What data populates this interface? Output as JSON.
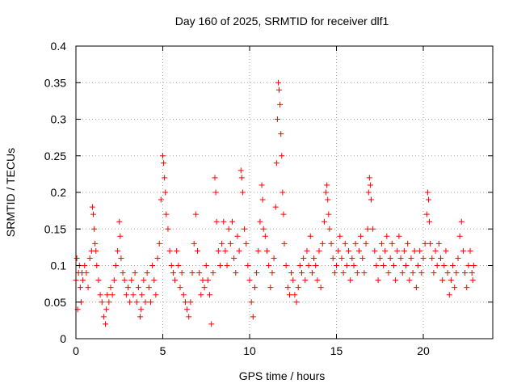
{
  "chart_data": {
    "type": "scatter",
    "title": "Day 160 of 2025, SRMTID for receiver dlf1",
    "xlabel": "GPS time / hours",
    "ylabel": "SRMTID / TECUs",
    "xlim": [
      0,
      24
    ],
    "ylim": [
      0,
      0.4
    ],
    "x_ticks": [
      0,
      5,
      10,
      15,
      20
    ],
    "x_tick_labels": [
      "0",
      "5",
      "10",
      "15",
      "20"
    ],
    "y_ticks": [
      0,
      0.05,
      0.1,
      0.15,
      0.2,
      0.25,
      0.3,
      0.35,
      0.4
    ],
    "y_tick_labels": [
      "0",
      "0.05",
      "0.1",
      "0.15",
      "0.2",
      "0.25",
      "0.3",
      "0.35",
      "0.4"
    ],
    "grid": true,
    "marker": "plus",
    "series": [
      {
        "name": "SRMTID",
        "color": "#ff0000",
        "points": [
          [
            0.0,
            0.08
          ],
          [
            0.05,
            0.11
          ],
          [
            0.1,
            0.04
          ],
          [
            0.15,
            0.09
          ],
          [
            0.2,
            0.1
          ],
          [
            0.25,
            0.07
          ],
          [
            0.3,
            0.05
          ],
          [
            0.35,
            0.09
          ],
          [
            0.4,
            0.08
          ],
          [
            0.5,
            0.1
          ],
          [
            0.6,
            0.09
          ],
          [
            0.7,
            0.07
          ],
          [
            0.8,
            0.11
          ],
          [
            0.9,
            0.12
          ],
          [
            0.95,
            0.18
          ],
          [
            1.0,
            0.17
          ],
          [
            1.05,
            0.15
          ],
          [
            1.1,
            0.13
          ],
          [
            1.15,
            0.12
          ],
          [
            1.2,
            0.1
          ],
          [
            1.3,
            0.08
          ],
          [
            1.4,
            0.06
          ],
          [
            1.5,
            0.05
          ],
          [
            1.6,
            0.03
          ],
          [
            1.7,
            0.02
          ],
          [
            1.75,
            0.04
          ],
          [
            1.8,
            0.06
          ],
          [
            1.9,
            0.05
          ],
          [
            2.0,
            0.07
          ],
          [
            2.1,
            0.06
          ],
          [
            2.2,
            0.08
          ],
          [
            2.3,
            0.1
          ],
          [
            2.4,
            0.12
          ],
          [
            2.5,
            0.16
          ],
          [
            2.55,
            0.14
          ],
          [
            2.6,
            0.11
          ],
          [
            2.7,
            0.09
          ],
          [
            2.8,
            0.08
          ],
          [
            2.9,
            0.06
          ],
          [
            3.0,
            0.07
          ],
          [
            3.1,
            0.05
          ],
          [
            3.2,
            0.08
          ],
          [
            3.3,
            0.06
          ],
          [
            3.4,
            0.09
          ],
          [
            3.5,
            0.05
          ],
          [
            3.6,
            0.07
          ],
          [
            3.7,
            0.03
          ],
          [
            3.75,
            0.04
          ],
          [
            3.8,
            0.06
          ],
          [
            3.9,
            0.08
          ],
          [
            4.0,
            0.05
          ],
          [
            4.1,
            0.09
          ],
          [
            4.2,
            0.07
          ],
          [
            4.3,
            0.05
          ],
          [
            4.4,
            0.1
          ],
          [
            4.5,
            0.08
          ],
          [
            4.6,
            0.06
          ],
          [
            4.7,
            0.11
          ],
          [
            4.8,
            0.13
          ],
          [
            4.9,
            0.19
          ],
          [
            5.0,
            0.25
          ],
          [
            5.05,
            0.24
          ],
          [
            5.1,
            0.22
          ],
          [
            5.15,
            0.2
          ],
          [
            5.2,
            0.17
          ],
          [
            5.3,
            0.15
          ],
          [
            5.4,
            0.12
          ],
          [
            5.5,
            0.1
          ],
          [
            5.6,
            0.09
          ],
          [
            5.7,
            0.08
          ],
          [
            5.8,
            0.12
          ],
          [
            5.9,
            0.1
          ],
          [
            6.0,
            0.07
          ],
          [
            6.1,
            0.09
          ],
          [
            6.2,
            0.06
          ],
          [
            6.3,
            0.05
          ],
          [
            6.4,
            0.04
          ],
          [
            6.5,
            0.03
          ],
          [
            6.6,
            0.05
          ],
          [
            6.7,
            0.09
          ],
          [
            6.8,
            0.13
          ],
          [
            6.9,
            0.17
          ],
          [
            7.0,
            0.12
          ],
          [
            7.1,
            0.09
          ],
          [
            7.2,
            0.06
          ],
          [
            7.3,
            0.08
          ],
          [
            7.4,
            0.07
          ],
          [
            7.5,
            0.1
          ],
          [
            7.6,
            0.08
          ],
          [
            7.7,
            0.06
          ],
          [
            7.8,
            0.02
          ],
          [
            7.9,
            0.09
          ],
          [
            8.0,
            0.22
          ],
          [
            8.05,
            0.2
          ],
          [
            8.1,
            0.16
          ],
          [
            8.2,
            0.12
          ],
          [
            8.3,
            0.1
          ],
          [
            8.4,
            0.13
          ],
          [
            8.5,
            0.16
          ],
          [
            8.6,
            0.12
          ],
          [
            8.7,
            0.1
          ],
          [
            8.8,
            0.15
          ],
          [
            8.9,
            0.13
          ],
          [
            9.0,
            0.16
          ],
          [
            9.1,
            0.11
          ],
          [
            9.2,
            0.09
          ],
          [
            9.3,
            0.14
          ],
          [
            9.4,
            0.12
          ],
          [
            9.5,
            0.23
          ],
          [
            9.55,
            0.22
          ],
          [
            9.6,
            0.2
          ],
          [
            9.7,
            0.15
          ],
          [
            9.8,
            0.13
          ],
          [
            9.9,
            0.1
          ],
          [
            10.0,
            0.08
          ],
          [
            10.1,
            0.05
          ],
          [
            10.2,
            0.03
          ],
          [
            10.3,
            0.07
          ],
          [
            10.4,
            0.09
          ],
          [
            10.5,
            0.12
          ],
          [
            10.6,
            0.16
          ],
          [
            10.7,
            0.21
          ],
          [
            10.75,
            0.19
          ],
          [
            10.8,
            0.15
          ],
          [
            10.9,
            0.14
          ],
          [
            11.0,
            0.12
          ],
          [
            11.1,
            0.1
          ],
          [
            11.2,
            0.07
          ],
          [
            11.3,
            0.09
          ],
          [
            11.4,
            0.11
          ],
          [
            11.5,
            0.18
          ],
          [
            11.55,
            0.24
          ],
          [
            11.6,
            0.3
          ],
          [
            11.65,
            0.35
          ],
          [
            11.7,
            0.34
          ],
          [
            11.75,
            0.32
          ],
          [
            11.8,
            0.28
          ],
          [
            11.85,
            0.25
          ],
          [
            11.9,
            0.2
          ],
          [
            11.95,
            0.17
          ],
          [
            12.0,
            0.13
          ],
          [
            12.1,
            0.1
          ],
          [
            12.2,
            0.07
          ],
          [
            12.3,
            0.06
          ],
          [
            12.4,
            0.09
          ],
          [
            12.5,
            0.08
          ],
          [
            12.6,
            0.06
          ],
          [
            12.7,
            0.05
          ],
          [
            12.8,
            0.07
          ],
          [
            12.9,
            0.1
          ],
          [
            13.0,
            0.09
          ],
          [
            13.1,
            0.11
          ],
          [
            13.2,
            0.08
          ],
          [
            13.3,
            0.12
          ],
          [
            13.4,
            0.1
          ],
          [
            13.5,
            0.14
          ],
          [
            13.6,
            0.09
          ],
          [
            13.7,
            0.11
          ],
          [
            13.8,
            0.1
          ],
          [
            13.9,
            0.08
          ],
          [
            14.0,
            0.12
          ],
          [
            14.1,
            0.07
          ],
          [
            14.2,
            0.13
          ],
          [
            14.3,
            0.16
          ],
          [
            14.4,
            0.2
          ],
          [
            14.45,
            0.21
          ],
          [
            14.5,
            0.19
          ],
          [
            14.55,
            0.17
          ],
          [
            14.6,
            0.15
          ],
          [
            14.7,
            0.13
          ],
          [
            14.8,
            0.11
          ],
          [
            14.9,
            0.09
          ],
          [
            15.0,
            0.1
          ],
          [
            15.1,
            0.12
          ],
          [
            15.2,
            0.14
          ],
          [
            15.3,
            0.11
          ],
          [
            15.4,
            0.09
          ],
          [
            15.5,
            0.13
          ],
          [
            15.6,
            0.1
          ],
          [
            15.7,
            0.12
          ],
          [
            15.8,
            0.08
          ],
          [
            15.9,
            0.11
          ],
          [
            16.0,
            0.1
          ],
          [
            16.1,
            0.13
          ],
          [
            16.2,
            0.09
          ],
          [
            16.3,
            0.12
          ],
          [
            16.4,
            0.14
          ],
          [
            16.5,
            0.11
          ],
          [
            16.6,
            0.09
          ],
          [
            16.7,
            0.13
          ],
          [
            16.8,
            0.15
          ],
          [
            16.85,
            0.2
          ],
          [
            16.9,
            0.22
          ],
          [
            16.95,
            0.21
          ],
          [
            17.0,
            0.19
          ],
          [
            17.1,
            0.15
          ],
          [
            17.2,
            0.12
          ],
          [
            17.3,
            0.1
          ],
          [
            17.4,
            0.08
          ],
          [
            17.5,
            0.11
          ],
          [
            17.6,
            0.13
          ],
          [
            17.7,
            0.1
          ],
          [
            17.8,
            0.12
          ],
          [
            17.9,
            0.14
          ],
          [
            18.0,
            0.09
          ],
          [
            18.1,
            0.11
          ],
          [
            18.2,
            0.13
          ],
          [
            18.3,
            0.1
          ],
          [
            18.4,
            0.08
          ],
          [
            18.5,
            0.12
          ],
          [
            18.6,
            0.14
          ],
          [
            18.7,
            0.11
          ],
          [
            18.8,
            0.09
          ],
          [
            18.9,
            0.12
          ],
          [
            19.0,
            0.1
          ],
          [
            19.1,
            0.13
          ],
          [
            19.2,
            0.08
          ],
          [
            19.3,
            0.11
          ],
          [
            19.4,
            0.09
          ],
          [
            19.5,
            0.12
          ],
          [
            19.6,
            0.07
          ],
          [
            19.7,
            0.1
          ],
          [
            19.8,
            0.12
          ],
          [
            19.9,
            0.09
          ],
          [
            20.0,
            0.11
          ],
          [
            20.1,
            0.13
          ],
          [
            20.2,
            0.17
          ],
          [
            20.25,
            0.2
          ],
          [
            20.3,
            0.19
          ],
          [
            20.35,
            0.16
          ],
          [
            20.4,
            0.13
          ],
          [
            20.5,
            0.11
          ],
          [
            20.6,
            0.09
          ],
          [
            20.7,
            0.12
          ],
          [
            20.8,
            0.1
          ],
          [
            20.9,
            0.13
          ],
          [
            21.0,
            0.11
          ],
          [
            21.1,
            0.08
          ],
          [
            21.2,
            0.1
          ],
          [
            21.3,
            0.12
          ],
          [
            21.4,
            0.09
          ],
          [
            21.5,
            0.06
          ],
          [
            21.6,
            0.08
          ],
          [
            21.7,
            0.1
          ],
          [
            21.8,
            0.07
          ],
          [
            21.9,
            0.09
          ],
          [
            22.0,
            0.11
          ],
          [
            22.1,
            0.14
          ],
          [
            22.2,
            0.16
          ],
          [
            22.3,
            0.12
          ],
          [
            22.4,
            0.09
          ],
          [
            22.5,
            0.07
          ],
          [
            22.6,
            0.1
          ],
          [
            22.7,
            0.12
          ],
          [
            22.8,
            0.09
          ],
          [
            22.85,
            0.08
          ],
          [
            22.9,
            0.1
          ]
        ]
      }
    ]
  }
}
